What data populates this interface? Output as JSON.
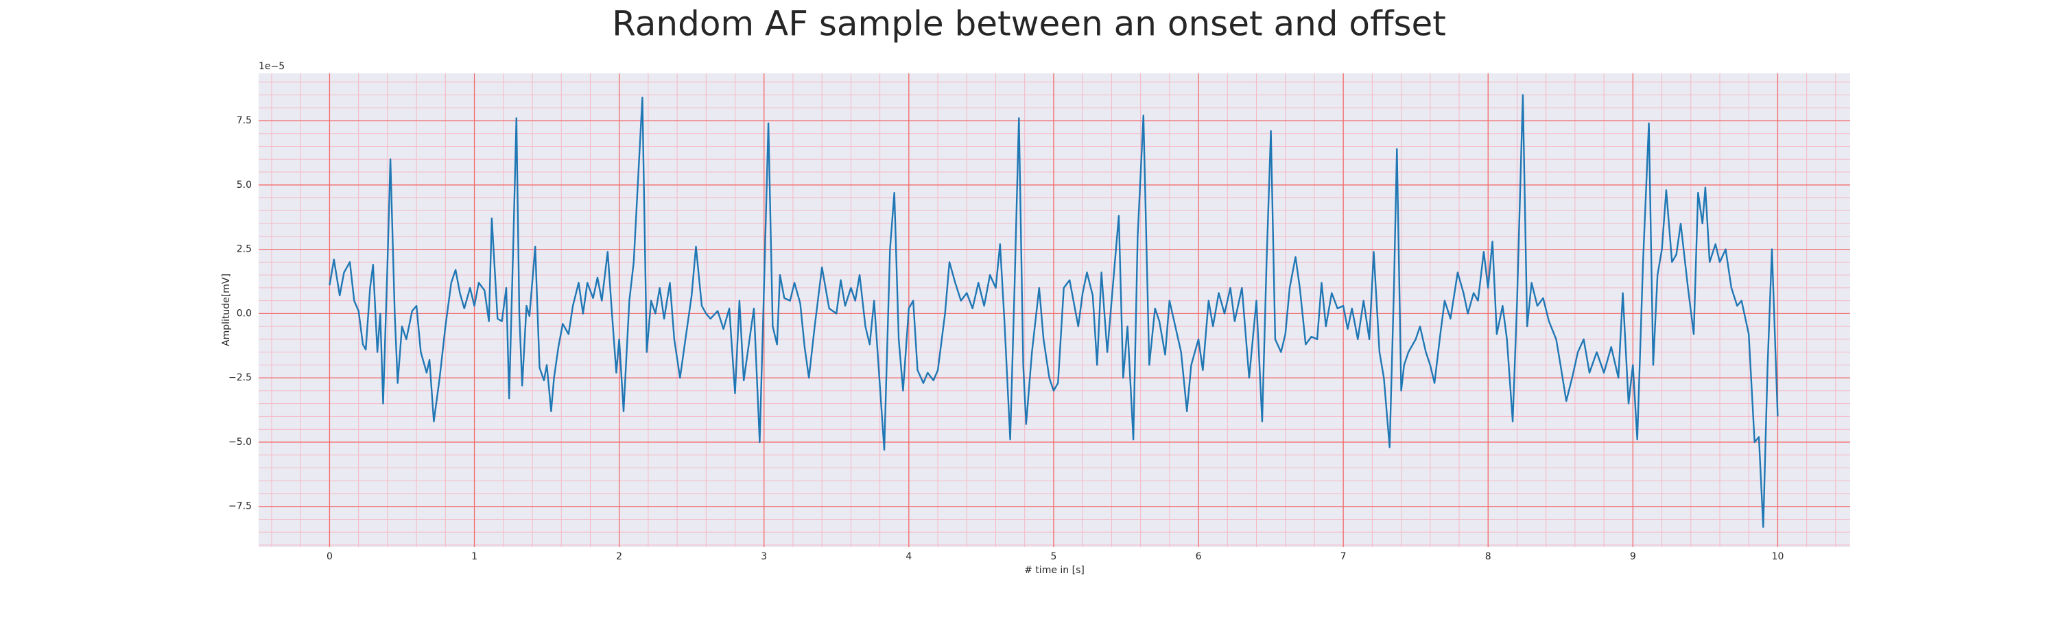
{
  "chart_data": {
    "type": "line",
    "title": "Random AF sample between an onset and offset",
    "xlabel": "# time in [s]",
    "ylabel": "Amplitude[mV]",
    "y_offset_label": "1e−5",
    "color": "#1f77b4",
    "grid": true,
    "minor_grid": true,
    "xlim": [
      -0.49,
      10.5
    ],
    "ylim": [
      -9.08,
      9.34
    ],
    "xticks": [
      0,
      1,
      2,
      3,
      4,
      5,
      6,
      7,
      8,
      9,
      10
    ],
    "yticks": [
      {
        "value": -7.5,
        "label": "−7.5"
      },
      {
        "value": -5,
        "label": "−5.0"
      },
      {
        "value": -2.5,
        "label": "−2.5"
      },
      {
        "value": 0,
        "label": "0.0"
      },
      2.5,
      {
        "value": 5,
        "label": "5.0"
      },
      7.5
    ],
    "x": [
      0,
      0.03,
      0.07,
      0.1,
      0.14,
      0.17,
      0.2,
      0.23,
      0.25,
      0.28,
      0.3,
      0.33,
      0.35,
      0.37,
      0.4,
      0.42,
      0.45,
      0.47,
      0.5,
      0.53,
      0.57,
      0.6,
      0.63,
      0.67,
      0.69,
      0.72,
      0.76,
      0.8,
      0.84,
      0.87,
      0.9,
      0.93,
      0.97,
      1.0,
      1.03,
      1.07,
      1.1,
      1.12,
      1.16,
      1.19,
      1.22,
      1.24,
      1.27,
      1.29,
      1.31,
      1.33,
      1.36,
      1.38,
      1.42,
      1.45,
      1.48,
      1.5,
      1.53,
      1.55,
      1.58,
      1.61,
      1.65,
      1.68,
      1.72,
      1.75,
      1.78,
      1.82,
      1.85,
      1.88,
      1.92,
      1.95,
      1.98,
      2.0,
      2.03,
      2.07,
      2.1,
      2.16,
      2.19,
      2.22,
      2.25,
      2.28,
      2.31,
      2.35,
      2.38,
      2.42,
      2.45,
      2.5,
      2.53,
      2.57,
      2.6,
      2.63,
      2.68,
      2.72,
      2.76,
      2.8,
      2.83,
      2.86,
      2.9,
      2.93,
      2.97,
      3.0,
      3.03,
      3.06,
      3.09,
      3.11,
      3.14,
      3.18,
      3.21,
      3.25,
      3.28,
      3.31,
      3.35,
      3.4,
      3.45,
      3.5,
      3.53,
      3.56,
      3.6,
      3.63,
      3.66,
      3.7,
      3.73,
      3.76,
      3.83,
      3.87,
      3.9,
      3.93,
      3.96,
      4.0,
      4.03,
      4.06,
      4.1,
      4.13,
      4.17,
      4.2,
      4.25,
      4.28,
      4.32,
      4.36,
      4.4,
      4.44,
      4.48,
      4.52,
      4.56,
      4.6,
      4.63,
      4.66,
      4.7,
      4.73,
      4.76,
      4.79,
      4.81,
      4.85,
      4.9,
      4.93,
      4.97,
      5.0,
      5.03,
      5.07,
      5.11,
      5.14,
      5.17,
      5.2,
      5.23,
      5.27,
      5.3,
      5.33,
      5.37,
      5.45,
      5.48,
      5.51,
      5.55,
      5.58,
      5.62,
      5.66,
      5.7,
      5.73,
      5.77,
      5.8,
      5.84,
      5.88,
      5.92,
      5.95,
      6.0,
      6.03,
      6.07,
      6.1,
      6.14,
      6.18,
      6.22,
      6.25,
      6.3,
      6.35,
      6.4,
      6.44,
      6.47,
      6.5,
      6.53,
      6.57,
      6.6,
      6.63,
      6.67,
      6.7,
      6.74,
      6.78,
      6.82,
      6.85,
      6.88,
      6.92,
      6.96,
      7.0,
      7.03,
      7.06,
      7.1,
      7.14,
      7.18,
      7.21,
      7.25,
      7.28,
      7.32,
      7.35,
      7.37,
      7.4,
      7.42,
      7.45,
      7.5,
      7.53,
      7.57,
      7.6,
      7.63,
      7.67,
      7.7,
      7.74,
      7.79,
      7.83,
      7.86,
      7.9,
      7.93,
      7.97,
      8.0,
      8.03,
      8.06,
      8.1,
      8.13,
      8.17,
      8.2,
      8.24,
      8.27,
      8.3,
      8.34,
      8.38,
      8.42,
      8.47,
      8.5,
      8.54,
      8.58,
      8.62,
      8.66,
      8.7,
      8.75,
      8.8,
      8.85,
      8.9,
      8.93,
      8.97,
      9.0,
      9.03,
      9.07,
      9.11,
      9.14,
      9.17,
      9.2,
      9.23,
      9.27,
      9.3,
      9.33,
      9.38,
      9.42,
      9.45,
      9.48,
      9.5,
      9.53,
      9.57,
      9.6,
      9.64,
      9.68,
      9.72,
      9.75,
      9.8,
      9.84,
      9.87,
      9.9,
      9.93,
      9.96,
      10.0
    ],
    "values": [
      1.1,
      2.1,
      0.7,
      1.6,
      2.0,
      0.5,
      0.1,
      -1.2,
      -1.4,
      1.0,
      1.9,
      -1.5,
      0.0,
      -3.5,
      2,
      6.0,
      0,
      -2.7,
      -0.5,
      -1.0,
      0.1,
      0.3,
      -1.5,
      -2.3,
      -1.8,
      -4.2,
      -2.5,
      -0.5,
      1.2,
      1.7,
      0.8,
      0.2,
      1.0,
      0.3,
      1.2,
      0.9,
      -0.3,
      3.7,
      -0.2,
      -0.3,
      1.0,
      -3.3,
      3,
      7.6,
      0,
      -2.8,
      0.3,
      -0.1,
      2.6,
      -2.1,
      -2.6,
      -2.0,
      -3.8,
      -2.5,
      -1.3,
      -0.4,
      -0.8,
      0.3,
      1.2,
      0.0,
      1.2,
      0.6,
      1.4,
      0.5,
      2.4,
      0.0,
      -2.3,
      -1.0,
      -3.8,
      0.5,
      2.0,
      8.4,
      -1.5,
      0.5,
      0.0,
      1.0,
      -0.2,
      1.2,
      -1.0,
      -2.5,
      -1.3,
      0.7,
      2.6,
      0.3,
      0,
      -0.2,
      0.1,
      -0.6,
      0.2,
      -3.1,
      0.5,
      -2.6,
      -1.0,
      0.2,
      -5.0,
      1.0,
      7.4,
      -0.5,
      -1.2,
      1.5,
      0.6,
      0.5,
      1.2,
      0.4,
      -1.3,
      -2.5,
      -0.5,
      1.8,
      0.2,
      0.0,
      1.3,
      0.3,
      1.0,
      0.5,
      1.5,
      -0.5,
      -1.2,
      0.5,
      -5.3,
      2.5,
      4.7,
      -1.0,
      -3.0,
      0.2,
      0.5,
      -2.2,
      -2.7,
      -2.3,
      -2.6,
      -2.2,
      0,
      2.0,
      1.2,
      0.5,
      0.8,
      0.2,
      1.2,
      0.3,
      1.5,
      1.0,
      2.7,
      -0.3,
      -4.9,
      1,
      7.6,
      -2.0,
      -4.3,
      -1.5,
      1.0,
      -1.0,
      -2.5,
      -3.0,
      -2.7,
      1.0,
      1.3,
      0.4,
      -0.5,
      0.8,
      1.6,
      0.7,
      -2.0,
      1.6,
      -1.5,
      3.8,
      -2.5,
      -0.5,
      -4.9,
      3.0,
      7.7,
      -2.0,
      0.2,
      -0.3,
      -1.6,
      0.5,
      -0.5,
      -1.5,
      -3.8,
      -2.0,
      -1.0,
      -2.2,
      0.5,
      -0.5,
      0.8,
      0.0,
      1.0,
      -0.3,
      1.0,
      -2.5,
      0.5,
      -4.2,
      2.0,
      7.1,
      -1.0,
      -1.5,
      -0.8,
      1.0,
      2.2,
      1.0,
      -1.2,
      -0.9,
      -1.0,
      1.2,
      -0.5,
      0.8,
      0.2,
      0.3,
      -0.6,
      0.2,
      -1.0,
      0.5,
      -1.0,
      2.4,
      -1.5,
      -2.5,
      -5.2,
      1,
      6.4,
      -3.0,
      -2.0,
      -1.5,
      -1.0,
      -0.5,
      -1.5,
      -2.0,
      -2.7,
      -0.8,
      0.5,
      -0.2,
      1.6,
      0.8,
      0.0,
      0.8,
      0.5,
      2.4,
      1.0,
      2.8,
      -0.8,
      0.3,
      -1.0,
      -4.2,
      0.5,
      8.5,
      -0.5,
      1.2,
      0.3,
      0.6,
      -0.3,
      -1.0,
      -2.0,
      -3.4,
      -2.5,
      -1.5,
      -1.0,
      -2.3,
      -1.5,
      -2.3,
      -1.3,
      -2.5,
      0.8,
      -3.5,
      -2.0,
      -4.9,
      2.0,
      7.4,
      -2.0,
      1.5,
      2.5,
      4.8,
      2.0,
      2.3,
      3.5,
      1.0,
      -0.8,
      4.7,
      3.5,
      4.9,
      2.0,
      2.7,
      2.0,
      2.5,
      1.0,
      0.3,
      0.5,
      -0.8,
      -5.0,
      -4.8,
      -8.3,
      -2.0,
      2.5,
      -4.0
    ]
  }
}
